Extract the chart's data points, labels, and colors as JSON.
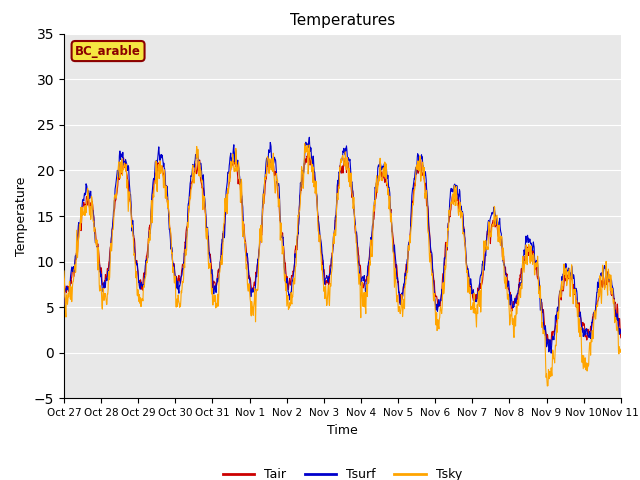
{
  "title": "Temperatures",
  "xlabel": "Time",
  "ylabel": "Temperature",
  "ylim": [
    -5,
    35
  ],
  "annotation": "BC_arable",
  "legend": [
    "Tair",
    "Tsurf",
    "Tsky"
  ],
  "colors": {
    "Tair": "#cc0000",
    "Tsurf": "#0000cc",
    "Tsky": "#ffa500"
  },
  "background_color": "#e8e8e8",
  "yticks": [
    -5,
    0,
    5,
    10,
    15,
    20,
    25,
    30,
    35
  ],
  "xtick_labels": [
    "Oct 27",
    "Oct 28",
    "Oct 29",
    "Oct 30",
    "Oct 31",
    "Nov 1",
    "Nov 2",
    "Nov 3",
    "Nov 4",
    "Nov 5",
    "Nov 6",
    "Nov 7",
    "Nov 8",
    "Nov 9",
    "Nov 10",
    "Nov 11"
  ],
  "n_days": 15,
  "pts_per_day": 96
}
